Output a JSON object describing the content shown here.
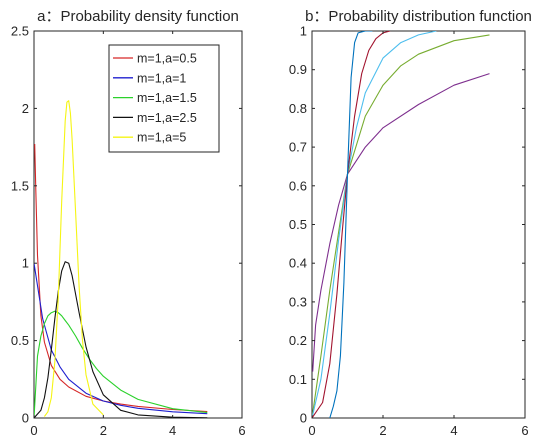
{
  "chart_data": [
    {
      "type": "line",
      "title": "a：Probability density function",
      "xlabel": "",
      "ylabel": "",
      "xlim": [
        0,
        6
      ],
      "ylim": [
        0,
        2.5
      ],
      "xticks": [
        0,
        2,
        4,
        6
      ],
      "yticks": [
        0,
        0.5,
        1,
        1.5,
        2,
        2.5
      ],
      "grid": false,
      "legend_position": "top-right",
      "series": [
        {
          "name": "m=1,a=0.5",
          "color": "#d62728",
          "x": [
            0.02,
            0.05,
            0.1,
            0.2,
            0.3,
            0.5,
            0.75,
            1,
            1.5,
            2,
            2.5,
            3,
            4,
            5
          ],
          "y": [
            1.77,
            1.5,
            1.05,
            0.66,
            0.49,
            0.34,
            0.25,
            0.2,
            0.14,
            0.11,
            0.09,
            0.075,
            0.055,
            0.042
          ]
        },
        {
          "name": "m=1,a=1",
          "color": "#1f1fcf",
          "x": [
            0,
            0.25,
            0.5,
            0.75,
            1,
            1.5,
            2,
            2.5,
            3,
            4,
            5
          ],
          "y": [
            1,
            0.64,
            0.44,
            0.33,
            0.25,
            0.16,
            0.11,
            0.082,
            0.0625,
            0.04,
            0.028
          ]
        },
        {
          "name": "m=1,a=1.5",
          "color": "#2bd12b",
          "x": [
            0,
            0.1,
            0.2,
            0.3,
            0.4,
            0.5,
            0.6,
            0.7,
            0.8,
            0.9,
            1,
            1.2,
            1.4,
            1.6,
            1.8,
            2,
            2.5,
            3,
            4,
            5
          ],
          "y": [
            0,
            0.4,
            0.53,
            0.61,
            0.66,
            0.68,
            0.69,
            0.68,
            0.66,
            0.63,
            0.6,
            0.53,
            0.45,
            0.38,
            0.32,
            0.27,
            0.18,
            0.12,
            0.06,
            0.035
          ]
        },
        {
          "name": "m=1,a=2.5",
          "color": "#111111",
          "x": [
            0,
            0.2,
            0.3,
            0.4,
            0.5,
            0.6,
            0.7,
            0.8,
            0.9,
            1,
            1.1,
            1.2,
            1.3,
            1.5,
            1.7,
            2,
            2.5,
            3,
            4,
            5
          ],
          "y": [
            0,
            0.05,
            0.13,
            0.26,
            0.44,
            0.64,
            0.82,
            0.95,
            1.01,
            1.0,
            0.92,
            0.8,
            0.68,
            0.46,
            0.3,
            0.15,
            0.05,
            0.02,
            0.005,
            0.001
          ]
        },
        {
          "name": "m=1,a=5",
          "color": "#f5f514",
          "x": [
            0.3,
            0.4,
            0.5,
            0.6,
            0.7,
            0.8,
            0.9,
            0.95,
            1,
            1.05,
            1.1,
            1.2,
            1.3,
            1.4,
            1.5,
            1.7,
            2
          ],
          "y": [
            0.01,
            0.04,
            0.13,
            0.36,
            0.78,
            1.4,
            1.92,
            2.04,
            2.05,
            1.97,
            1.8,
            1.33,
            0.85,
            0.5,
            0.28,
            0.09,
            0.02
          ]
        }
      ]
    },
    {
      "type": "line",
      "title": "b：Probability distribution function",
      "xlabel": "",
      "ylabel": "",
      "xlim": [
        0,
        6
      ],
      "ylim": [
        0,
        1
      ],
      "xticks": [
        0,
        2,
        4,
        6
      ],
      "yticks": [
        0,
        0.1,
        0.2,
        0.3,
        0.4,
        0.5,
        0.6,
        0.7,
        0.8,
        0.9,
        1
      ],
      "grid": false,
      "series": [
        {
          "color": "#7e2f8e",
          "x": [
            0.02,
            0.1,
            0.25,
            0.5,
            0.75,
            1,
            1.5,
            2,
            3,
            4,
            5
          ],
          "y": [
            0.12,
            0.24,
            0.33,
            0.45,
            0.55,
            0.63,
            0.7,
            0.75,
            0.81,
            0.86,
            0.89
          ]
        },
        {
          "color": "#77ac30",
          "x": [
            0,
            0.25,
            0.5,
            0.75,
            1,
            1.5,
            2,
            2.5,
            3,
            4,
            5
          ],
          "y": [
            0,
            0.16,
            0.33,
            0.48,
            0.63,
            0.78,
            0.86,
            0.91,
            0.94,
            0.975,
            0.99
          ]
        },
        {
          "color": "#4dbeee",
          "x": [
            0,
            0.25,
            0.5,
            0.75,
            1,
            1.25,
            1.5,
            2,
            2.5,
            3,
            3.5
          ],
          "y": [
            0,
            0.1,
            0.27,
            0.46,
            0.63,
            0.75,
            0.84,
            0.93,
            0.97,
            0.99,
            1
          ]
        },
        {
          "color": "#a2142f",
          "x": [
            0,
            0.3,
            0.5,
            0.7,
            0.85,
            1,
            1.2,
            1.4,
            1.6,
            1.8,
            2,
            2.2
          ],
          "y": [
            0,
            0.04,
            0.14,
            0.32,
            0.48,
            0.63,
            0.78,
            0.89,
            0.95,
            0.98,
            0.995,
            1
          ]
        },
        {
          "color": "#0072bd",
          "x": [
            0.5,
            0.6,
            0.7,
            0.8,
            0.9,
            1,
            1.1,
            1.2,
            1.3,
            1.5,
            1.7
          ],
          "y": [
            0,
            0.03,
            0.07,
            0.16,
            0.35,
            0.63,
            0.88,
            0.97,
            0.995,
            1,
            1
          ]
        }
      ]
    }
  ]
}
